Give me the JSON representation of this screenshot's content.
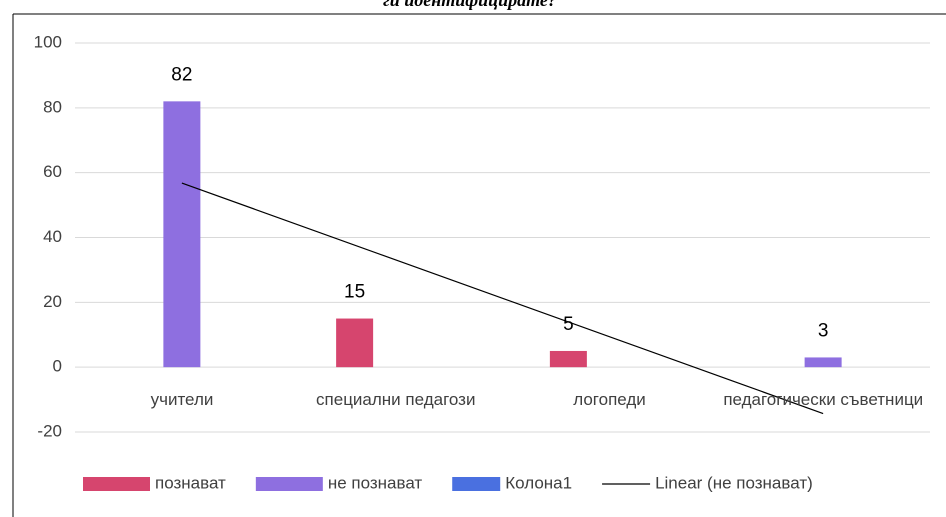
{
  "chart_data": {
    "type": "bar",
    "title": "ги идентифицирате?",
    "categories": [
      "учители",
      "специални педагози",
      "логопеди",
      "педагогически съветници"
    ],
    "series": [
      {
        "name": "познават",
        "color": "#d6456e",
        "values": [
          0,
          15,
          5,
          0
        ],
        "value_labels": [
          null,
          "15",
          "5",
          null
        ]
      },
      {
        "name": "не познават",
        "color": "#8e6fe0",
        "values": [
          82,
          0,
          0,
          3
        ],
        "value_labels": [
          "82",
          null,
          null,
          "3"
        ]
      },
      {
        "name": "Колона1",
        "color": "#4a70e0",
        "values": [
          null,
          null,
          null,
          null
        ]
      }
    ],
    "trendline": {
      "name": "Linear (не познават)",
      "series": 1,
      "kind": "linear",
      "color": "#000000"
    },
    "ylim": [
      -20,
      100
    ],
    "yticks": [
      -20,
      0,
      20,
      40,
      60,
      80,
      100
    ],
    "grid": true,
    "legend": "bottom"
  }
}
